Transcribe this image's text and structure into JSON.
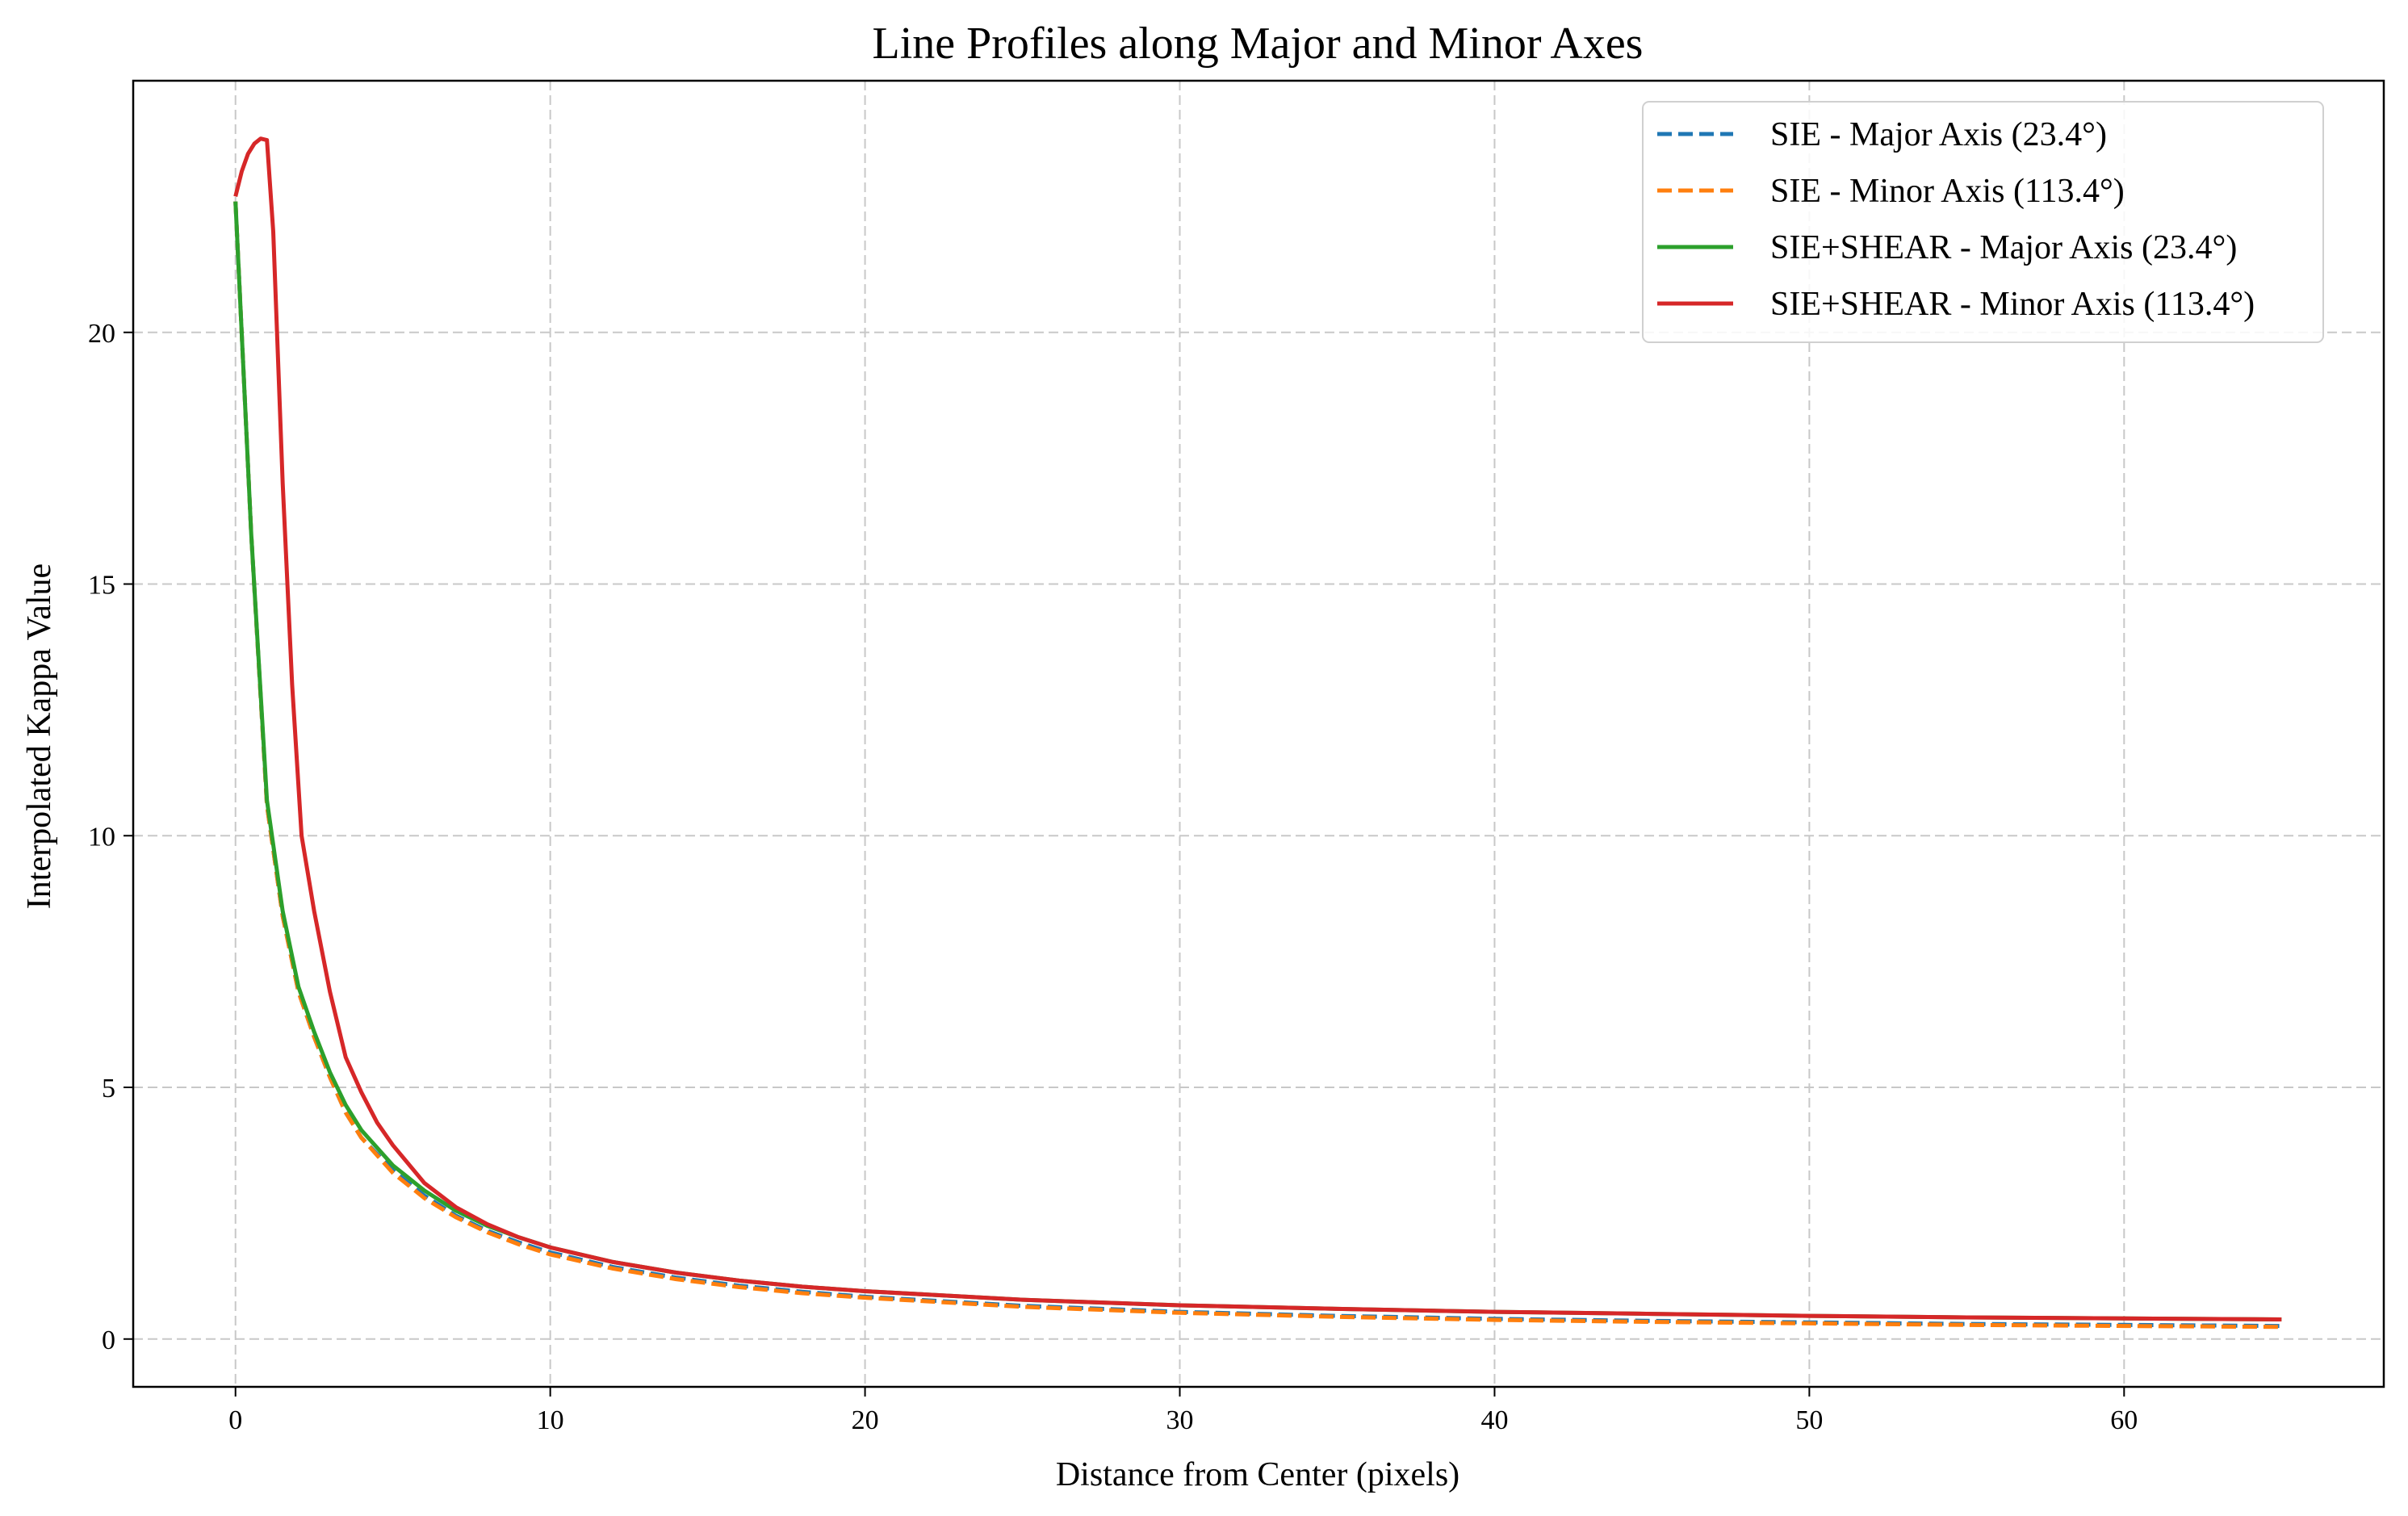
{
  "chart_data": {
    "type": "line",
    "title": "Line Profiles along Major and Minor Axes",
    "xlabel": "Distance from Center (pixels)",
    "ylabel": "Interpolated Kappa Value",
    "xlim": [
      -3.25,
      68.25
    ],
    "ylim": [
      -0.95,
      25.0
    ],
    "xticks": [
      0,
      10,
      20,
      30,
      40,
      50,
      60
    ],
    "yticks": [
      0,
      5,
      10,
      15,
      20
    ],
    "grid": true,
    "legend_position": "top-right",
    "series": [
      {
        "name": "SIE - Major Axis (23.4°)",
        "color": "#1f77b4",
        "style": "dashed",
        "x": [
          0,
          0.5,
          1,
          1.5,
          2,
          2.5,
          3,
          3.5,
          4,
          5,
          6,
          7,
          8,
          9,
          10,
          12,
          14,
          16,
          18,
          20,
          25,
          30,
          35,
          40,
          45,
          50,
          55,
          60,
          65
        ],
        "y": [
          22.6,
          16.0,
          10.6,
          8.4,
          6.9,
          6.0,
          5.2,
          4.5,
          4.0,
          3.35,
          2.85,
          2.45,
          2.15,
          1.92,
          1.72,
          1.43,
          1.22,
          1.06,
          0.94,
          0.84,
          0.66,
          0.54,
          0.46,
          0.4,
          0.36,
          0.33,
          0.3,
          0.28,
          0.26
        ]
      },
      {
        "name": "SIE - Minor Axis (113.4°)",
        "color": "#ff7f0e",
        "style": "dashed",
        "x": [
          0,
          0.5,
          1,
          1.5,
          2,
          2.5,
          3,
          3.5,
          4,
          5,
          6,
          7,
          8,
          9,
          10,
          12,
          14,
          16,
          18,
          20,
          25,
          30,
          35,
          40,
          45,
          50,
          55,
          60,
          65
        ],
        "y": [
          22.6,
          16.0,
          10.6,
          8.4,
          6.9,
          6.0,
          5.2,
          4.5,
          4.0,
          3.3,
          2.8,
          2.42,
          2.12,
          1.88,
          1.68,
          1.4,
          1.19,
          1.03,
          0.91,
          0.82,
          0.64,
          0.52,
          0.44,
          0.38,
          0.34,
          0.31,
          0.28,
          0.26,
          0.24
        ]
      },
      {
        "name": "SIE+SHEAR - Major Axis (23.4°)",
        "color": "#2ca02c",
        "style": "solid",
        "x": [
          0,
          0.5,
          1,
          1.5,
          2,
          2.5,
          3,
          3.5,
          4,
          5,
          6,
          7,
          8,
          9,
          10,
          12,
          14,
          16,
          18,
          20,
          25,
          30,
          35,
          40,
          45,
          50,
          55,
          60,
          65
        ],
        "y": [
          22.6,
          16.0,
          10.7,
          8.5,
          7.0,
          6.1,
          5.3,
          4.65,
          4.15,
          3.45,
          2.95,
          2.55,
          2.25,
          2.02,
          1.82,
          1.53,
          1.32,
          1.16,
          1.04,
          0.95,
          0.78,
          0.67,
          0.6,
          0.54,
          0.5,
          0.46,
          0.43,
          0.41,
          0.39
        ]
      },
      {
        "name": "SIE+SHEAR - Minor Axis (113.4°)",
        "color": "#d62728",
        "style": "solid",
        "x": [
          0,
          0.2,
          0.4,
          0.6,
          0.8,
          1.0,
          1.2,
          1.5,
          1.8,
          2.1,
          2.5,
          3,
          3.5,
          4,
          4.5,
          5,
          6,
          7,
          8,
          9,
          10,
          12,
          14,
          16,
          18,
          20,
          25,
          30,
          35,
          40,
          45,
          50,
          55,
          60,
          65
        ],
        "y": [
          22.7,
          23.2,
          23.55,
          23.75,
          23.85,
          23.82,
          22.0,
          17.0,
          13.0,
          10.0,
          8.5,
          6.9,
          5.6,
          4.9,
          4.3,
          3.85,
          3.1,
          2.62,
          2.28,
          2.02,
          1.82,
          1.53,
          1.32,
          1.16,
          1.04,
          0.95,
          0.78,
          0.67,
          0.6,
          0.54,
          0.5,
          0.46,
          0.43,
          0.41,
          0.39
        ]
      }
    ]
  }
}
